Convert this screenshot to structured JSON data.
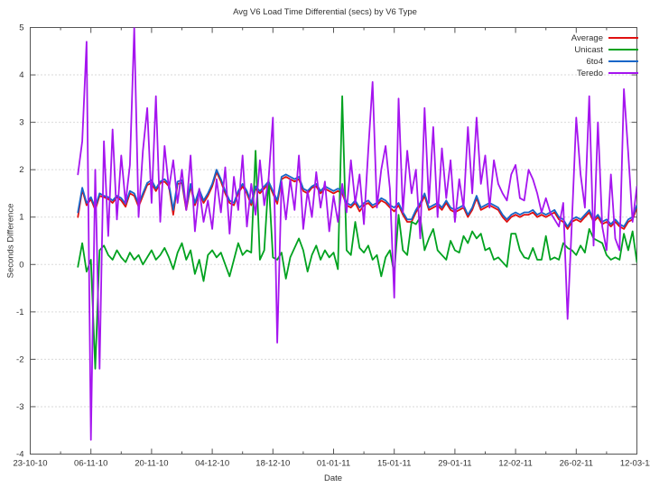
{
  "chart_data": {
    "type": "line",
    "title": "Avg V6 Load Time Differential (secs) by V6 Type",
    "xlabel": "Date",
    "ylabel": "Seconds Difference",
    "ylim": [
      -4,
      5
    ],
    "yticks": [
      5,
      4,
      3,
      2,
      1,
      0,
      -1,
      -2,
      -3,
      -4
    ],
    "grid": "horizontal dotted gridlines at integer y values, no vertical gridlines",
    "legend_position": "top-right inside plot, no box",
    "axis_color": "#555555",
    "grid_color": "#b5b5b5",
    "text_color": "#303030",
    "x_domain_days": [
      0,
      140
    ],
    "x_minor_tick_interval_days": 7,
    "xticks": [
      {
        "label": "23-10-10",
        "day": 0
      },
      {
        "label": "06-11-10",
        "day": 14
      },
      {
        "label": "20-11-10",
        "day": 28
      },
      {
        "label": "04-12-10",
        "day": 42
      },
      {
        "label": "18-12-10",
        "day": 56
      },
      {
        "label": "01-01-11",
        "day": 70
      },
      {
        "label": "15-01-11",
        "day": 84
      },
      {
        "label": "29-01-11",
        "day": 98
      },
      {
        "label": "12-02-11",
        "day": 112
      },
      {
        "label": "26-02-11",
        "day": 126
      },
      {
        "label": "12-03-11",
        "day": 140
      }
    ],
    "x_start_day": 11,
    "x_step_days": 1,
    "series": [
      {
        "name": "Average",
        "color": "#e01010",
        "values": [
          1.0,
          1.58,
          1.25,
          1.38,
          1.15,
          1.45,
          1.42,
          1.38,
          1.3,
          1.42,
          1.35,
          1.22,
          1.5,
          1.45,
          1.22,
          1.45,
          1.68,
          1.72,
          1.55,
          1.72,
          1.75,
          1.65,
          1.05,
          1.7,
          1.72,
          1.15,
          1.65,
          1.25,
          1.52,
          1.3,
          1.45,
          1.65,
          1.95,
          1.75,
          1.5,
          1.3,
          1.25,
          1.5,
          1.65,
          1.5,
          1.25,
          1.6,
          1.5,
          1.6,
          1.7,
          1.5,
          1.28,
          1.8,
          1.85,
          1.8,
          1.75,
          1.8,
          1.55,
          1.5,
          1.62,
          1.65,
          1.5,
          1.6,
          1.55,
          1.5,
          1.55,
          1.5,
          1.25,
          1.2,
          1.3,
          1.12,
          1.25,
          1.3,
          1.2,
          1.25,
          1.35,
          1.3,
          1.2,
          1.12,
          1.25,
          1.05,
          0.9,
          0.9,
          1.1,
          1.25,
          1.45,
          1.15,
          1.2,
          1.25,
          1.15,
          1.3,
          1.15,
          1.1,
          1.15,
          1.2,
          1.0,
          1.15,
          1.4,
          1.15,
          1.2,
          1.25,
          1.2,
          1.15,
          1.0,
          0.9,
          1.0,
          1.05,
          1.0,
          1.05,
          1.05,
          1.1,
          1.0,
          1.05,
          1.0,
          1.05,
          1.1,
          0.95,
          0.9,
          0.75,
          0.9,
          0.95,
          0.9,
          1.0,
          1.1,
          0.9,
          1.0,
          0.85,
          0.9,
          0.8,
          0.9,
          0.8,
          0.75,
          0.9,
          0.95,
          1.2
        ]
      },
      {
        "name": "Unicast",
        "color": "#00a21f",
        "values": [
          -0.05,
          0.45,
          -0.15,
          0.1,
          -2.2,
          0.3,
          0.4,
          0.2,
          0.1,
          0.3,
          0.15,
          0.05,
          0.25,
          0.1,
          0.2,
          0.0,
          0.15,
          0.3,
          0.1,
          0.2,
          0.35,
          0.15,
          -0.1,
          0.25,
          0.45,
          0.1,
          0.3,
          -0.2,
          0.1,
          -0.35,
          0.2,
          0.3,
          0.15,
          0.25,
          0.0,
          -0.25,
          0.1,
          0.45,
          0.2,
          0.3,
          0.25,
          2.4,
          0.1,
          0.3,
          1.8,
          0.15,
          0.1,
          0.25,
          -0.3,
          0.15,
          0.35,
          0.55,
          0.3,
          -0.15,
          0.2,
          0.4,
          0.1,
          0.3,
          0.15,
          0.25,
          -0.1,
          3.55,
          0.3,
          0.2,
          0.9,
          0.35,
          0.25,
          0.4,
          0.1,
          0.2,
          -0.25,
          0.15,
          0.3,
          -0.2,
          1.05,
          0.3,
          0.2,
          0.9,
          0.85,
          1.0,
          0.3,
          0.55,
          0.75,
          0.3,
          0.2,
          0.1,
          0.5,
          0.3,
          0.25,
          0.6,
          0.45,
          0.7,
          0.55,
          0.65,
          0.3,
          0.35,
          0.1,
          0.15,
          0.05,
          -0.05,
          0.65,
          0.65,
          0.3,
          0.15,
          0.12,
          0.35,
          0.1,
          0.1,
          0.6,
          0.1,
          0.15,
          0.1,
          0.45,
          0.35,
          0.3,
          0.2,
          0.4,
          0.25,
          0.75,
          0.55,
          0.5,
          0.45,
          0.2,
          0.1,
          0.15,
          0.1,
          0.65,
          0.3,
          0.7,
          0.05
        ]
      },
      {
        "name": "6to4",
        "color": "#1866c8",
        "values": [
          1.1,
          1.62,
          1.3,
          1.42,
          1.2,
          1.5,
          1.45,
          1.42,
          1.35,
          1.45,
          1.4,
          1.28,
          1.55,
          1.5,
          1.28,
          1.5,
          1.72,
          1.78,
          1.6,
          1.75,
          1.8,
          1.7,
          1.15,
          1.75,
          1.78,
          1.2,
          1.7,
          1.3,
          1.58,
          1.35,
          1.5,
          1.7,
          2.0,
          1.8,
          1.55,
          1.35,
          1.3,
          1.55,
          1.7,
          1.55,
          1.3,
          1.65,
          1.55,
          1.65,
          1.75,
          1.55,
          1.35,
          1.85,
          1.9,
          1.85,
          1.8,
          1.85,
          1.6,
          1.55,
          1.65,
          1.7,
          1.55,
          1.65,
          1.6,
          1.55,
          1.6,
          1.55,
          1.3,
          1.25,
          1.35,
          1.2,
          1.3,
          1.35,
          1.25,
          1.3,
          1.4,
          1.35,
          1.25,
          1.2,
          1.3,
          1.1,
          0.95,
          0.95,
          1.15,
          1.3,
          1.5,
          1.2,
          1.25,
          1.3,
          1.2,
          1.35,
          1.2,
          1.15,
          1.2,
          1.25,
          1.05,
          1.2,
          1.45,
          1.2,
          1.25,
          1.3,
          1.25,
          1.2,
          1.05,
          0.95,
          1.05,
          1.1,
          1.05,
          1.1,
          1.1,
          1.15,
          1.05,
          1.1,
          1.05,
          1.1,
          1.15,
          1.0,
          0.95,
          0.8,
          0.95,
          1.0,
          0.95,
          1.05,
          1.15,
          0.95,
          1.05,
          0.9,
          0.95,
          0.85,
          0.95,
          0.85,
          0.8,
          0.95,
          1.0,
          1.25
        ]
      },
      {
        "name": "Teredo",
        "color": "#a515ef",
        "values": [
          1.9,
          2.6,
          4.7,
          -3.7,
          2.0,
          -2.2,
          2.6,
          0.6,
          2.85,
          0.95,
          2.3,
          1.3,
          2.1,
          5.0,
          1.0,
          2.4,
          3.3,
          1.3,
          3.55,
          0.9,
          2.5,
          1.6,
          2.2,
          1.3,
          2.0,
          1.15,
          2.3,
          0.7,
          1.6,
          0.9,
          1.35,
          0.75,
          1.8,
          1.1,
          2.05,
          0.65,
          1.85,
          1.15,
          2.3,
          0.8,
          1.7,
          1.05,
          2.2,
          1.25,
          1.8,
          3.1,
          -1.65,
          1.75,
          0.95,
          1.8,
          1.15,
          2.3,
          0.75,
          1.55,
          1.0,
          1.95,
          1.2,
          1.75,
          0.7,
          1.45,
          0.9,
          1.7,
          1.1,
          2.2,
          1.3,
          1.9,
          0.85,
          2.4,
          3.85,
          1.2,
          2.0,
          2.5,
          1.6,
          -0.7,
          3.5,
          1.1,
          2.4,
          1.5,
          2.0,
          0.55,
          3.3,
          1.3,
          2.9,
          1.0,
          2.45,
          1.4,
          2.2,
          0.9,
          1.8,
          1.2,
          2.9,
          1.5,
          3.1,
          1.7,
          2.3,
          1.2,
          2.2,
          1.7,
          1.5,
          1.35,
          1.9,
          2.1,
          1.4,
          1.35,
          2.0,
          1.8,
          1.5,
          1.1,
          1.4,
          1.1,
          0.95,
          0.8,
          1.3,
          -1.15,
          0.9,
          3.1,
          1.9,
          1.2,
          3.55,
          0.4,
          3.0,
          0.8,
          0.3,
          1.9,
          0.55,
          0.3,
          3.7,
          2.35,
          0.9,
          1.65
        ]
      }
    ]
  }
}
